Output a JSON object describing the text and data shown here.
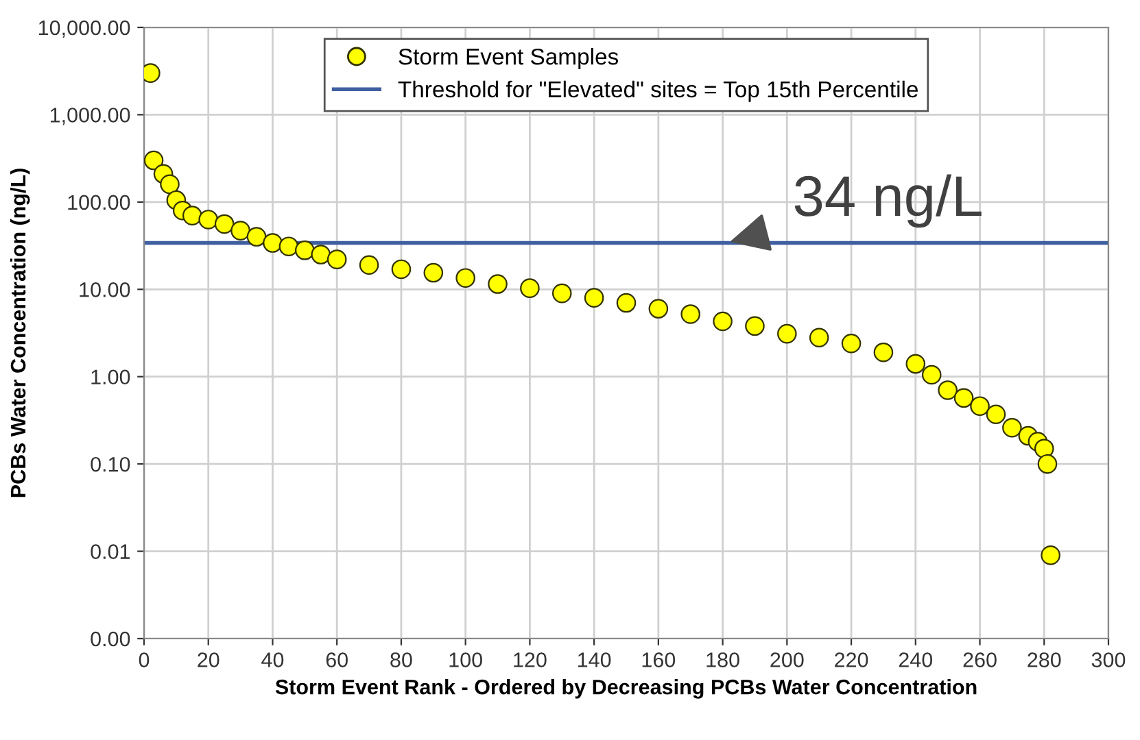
{
  "chart_data": {
    "type": "scatter",
    "xlabel": "Storm Event Rank - Ordered by Decreasing PCBs Water Concentration",
    "ylabel": "PCBs Water Concentration (ng/L)",
    "series": [
      {
        "name": "Storm Event Samples",
        "color": "#ffff00",
        "marker": "circle",
        "x": [
          2,
          3,
          6,
          8,
          10,
          12,
          15,
          20,
          25,
          30,
          35,
          40,
          45,
          50,
          55,
          60,
          70,
          80,
          90,
          100,
          110,
          120,
          130,
          140,
          150,
          160,
          170,
          180,
          190,
          200,
          210,
          220,
          230,
          240,
          245,
          250,
          255,
          260,
          265,
          270,
          275,
          278,
          280,
          281,
          282
        ],
        "values": [
          3000,
          300,
          210,
          160,
          105,
          80,
          70,
          63,
          56,
          47,
          40,
          34,
          31,
          28,
          25,
          22,
          19,
          17,
          15.5,
          13.5,
          11.5,
          10.3,
          9,
          8,
          7,
          6,
          5.2,
          4.3,
          3.8,
          3.1,
          2.8,
          2.4,
          1.9,
          1.4,
          1.05,
          0.7,
          0.57,
          0.46,
          0.37,
          0.26,
          0.21,
          0.18,
          0.15,
          0.1,
          0.009
        ]
      }
    ],
    "ref_lines": [
      {
        "axis": "y",
        "value": 34,
        "label": "Threshold for \"Elevated\" sites = Top 15th Percentile",
        "color": "#3f5fa0"
      }
    ],
    "annotations": [
      {
        "text": "34 ng/L",
        "x": 181,
        "y": 34
      }
    ],
    "log": "y",
    "xlim": [
      0,
      300
    ],
    "xticks": [
      0,
      20,
      40,
      60,
      80,
      100,
      120,
      140,
      160,
      180,
      200,
      220,
      240,
      260,
      280,
      300
    ],
    "ylim": [
      0.001,
      10000
    ],
    "yticks": [
      {
        "value": 0.001,
        "label": "0.00"
      },
      {
        "value": 0.01,
        "label": "0.01"
      },
      {
        "value": 0.1,
        "label": "0.10"
      },
      {
        "value": 1,
        "label": "1.00"
      },
      {
        "value": 10,
        "label": "10.00"
      },
      {
        "value": 100,
        "label": "100.00"
      },
      {
        "value": 1000,
        "label": "1,000.00"
      },
      {
        "value": 10000,
        "label": "10,000.00"
      }
    ],
    "grid": true,
    "legend": "top"
  }
}
